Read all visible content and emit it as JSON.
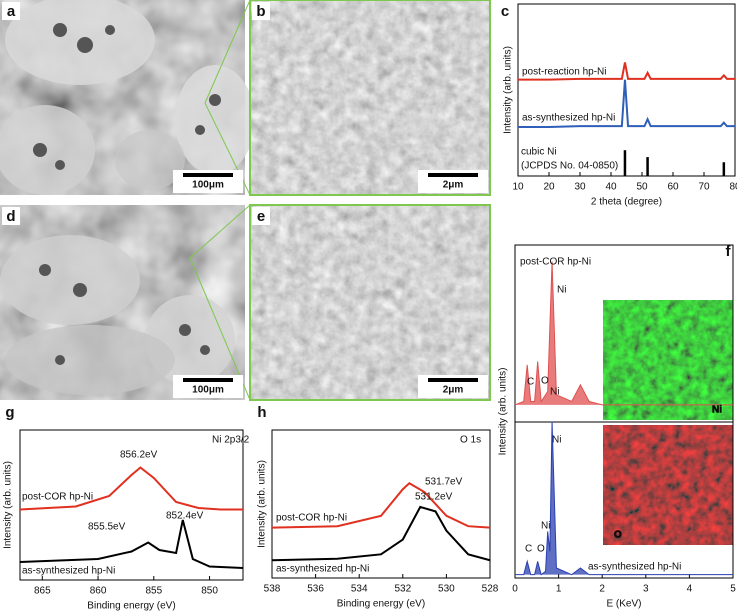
{
  "panels": [
    {
      "label": "a",
      "scale_bar": "100μm"
    },
    {
      "label": "b",
      "scale_bar": "2μm"
    },
    {
      "label": "d",
      "scale_bar": "100μm"
    },
    {
      "label": "e",
      "scale_bar": "2μm"
    }
  ],
  "chart_data": [
    {
      "type": "line",
      "panel_label": "c",
      "xlabel": "2 theta (degree)",
      "ylabel": "Intensity (arb. units)",
      "xlim": [
        10,
        80
      ],
      "ylim": [
        0,
        10
      ],
      "xticks": [
        10,
        20,
        30,
        40,
        50,
        60,
        70,
        80
      ],
      "series": [
        {
          "color": "#e03020",
          "x": [
            10,
            20,
            30,
            40,
            43.5,
            44.5,
            45.5,
            50.8,
            51.8,
            52.8,
            60,
            70,
            75.4,
            76.4,
            77.4,
            80
          ],
          "values": [
            5.6,
            5.6,
            5.65,
            5.65,
            5.65,
            6.6,
            5.65,
            5.65,
            6.0,
            5.65,
            5.65,
            5.65,
            5.65,
            5.85,
            5.65,
            5.65
          ]
        },
        {
          "color": "#2f5fb8",
          "x": [
            10,
            20,
            30,
            40,
            43.5,
            44.5,
            45.5,
            50.8,
            51.8,
            52.8,
            60,
            70,
            75.4,
            76.4,
            77.4,
            80
          ],
          "values": [
            2.85,
            2.85,
            2.9,
            2.9,
            2.9,
            5.6,
            2.9,
            2.9,
            3.3,
            2.9,
            2.9,
            2.9,
            2.9,
            3.1,
            2.9,
            2.9
          ]
        },
        {
          "type": "bar",
          "color": "#000000",
          "x": [
            44.5,
            51.8,
            76.4
          ],
          "values": [
            1.5,
            1.1,
            0.8
          ]
        }
      ],
      "annotations": [
        "post-reaction hp-Ni",
        "as-synthesized hp-Ni",
        "cubic Ni",
        "(JCPDS No. 04-0850)"
      ]
    },
    {
      "type": "area",
      "panel_label": "f",
      "xlabel": "E (KeV)",
      "ylabel": "Intensity (arb. units)",
      "xlim": [
        0,
        5
      ],
      "ylim": [
        0,
        10
      ],
      "xticks": [
        0,
        1,
        2,
        3,
        4,
        5
      ],
      "series": [
        {
          "color": "#e05050",
          "x": [
            0,
            0.2,
            0.28,
            0.36,
            0.45,
            0.52,
            0.6,
            0.75,
            0.85,
            0.95,
            1.3,
            1.5,
            1.7,
            2,
            5
          ],
          "values": [
            5.2,
            5.3,
            6.4,
            5.3,
            5.3,
            6.5,
            5.3,
            5.6,
            9.5,
            5.5,
            5.3,
            5.8,
            5.3,
            5.2,
            5.2
          ]
        },
        {
          "color": "#2a3fb0",
          "x": [
            0,
            0.2,
            0.28,
            0.36,
            0.45,
            0.52,
            0.6,
            0.7,
            0.75,
            0.8,
            0.85,
            0.95,
            1.3,
            1.5,
            1.7,
            2,
            5
          ],
          "values": [
            0.1,
            0.1,
            0.5,
            0.1,
            0.1,
            0.5,
            0.1,
            0.2,
            1.4,
            0.8,
            4.7,
            0.3,
            0.1,
            0.3,
            0.1,
            0.1,
            0.1
          ]
        }
      ],
      "annotations": [
        "post-COR hp-Ni",
        "Ni",
        "C",
        "O",
        "Ni",
        "Ni",
        "Ni",
        "C",
        "O",
        "as-synthesized hp-Ni"
      ],
      "maps": [
        "Ni",
        "O"
      ]
    },
    {
      "type": "line",
      "panel_label": "g",
      "title": "Ni 2p3/2",
      "xlabel": "Binding energy (eV)",
      "ylabel": "Intensity (arb. units)",
      "xlim": [
        867,
        847
      ],
      "ylim": [
        0,
        10
      ],
      "xticks": [
        865,
        860,
        855,
        850
      ],
      "series": [
        {
          "color": "#e03020",
          "x": [
            867,
            862,
            859,
            857,
            856.2,
            855,
            853,
            851,
            849,
            847
          ],
          "values": [
            4.7,
            4.9,
            5.6,
            7.0,
            7.5,
            6.8,
            5.2,
            4.8,
            4.7,
            4.7
          ]
        },
        {
          "color": "#000000",
          "x": [
            867,
            860,
            857,
            855.5,
            854.5,
            853,
            852.4,
            851.5,
            850,
            847
          ],
          "values": [
            1.2,
            1.4,
            1.9,
            2.5,
            2.0,
            1.8,
            4.0,
            1.4,
            0.9,
            0.8
          ]
        }
      ],
      "annotations": [
        "856.2eV",
        "post-COR hp-Ni",
        "855.5eV",
        "852.4eV",
        "as-synthesized hp-Ni"
      ]
    },
    {
      "type": "line",
      "panel_label": "h",
      "title": "O 1s",
      "xlabel": "Binding energy (eV)",
      "ylabel": "Intensity (arb. units)",
      "xlim": [
        538,
        528
      ],
      "ylim": [
        0,
        10
      ],
      "xticks": [
        538,
        536,
        534,
        532,
        530,
        528
      ],
      "series": [
        {
          "color": "#e03020",
          "x": [
            538,
            535,
            533,
            532,
            531.7,
            531,
            530,
            529,
            528
          ],
          "values": [
            3.4,
            3.5,
            4.2,
            6.0,
            6.4,
            5.8,
            4.2,
            3.5,
            3.4
          ]
        },
        {
          "color": "#000000",
          "x": [
            538,
            535,
            533,
            532,
            531.2,
            530.5,
            530,
            529,
            528
          ],
          "values": [
            1.2,
            1.3,
            1.6,
            2.6,
            4.8,
            4.5,
            3.2,
            1.6,
            1.2
          ]
        }
      ],
      "annotations": [
        "531.7eV",
        "531.2eV",
        "post-COR hp-Ni",
        "as-synthesized hp-Ni"
      ]
    }
  ]
}
